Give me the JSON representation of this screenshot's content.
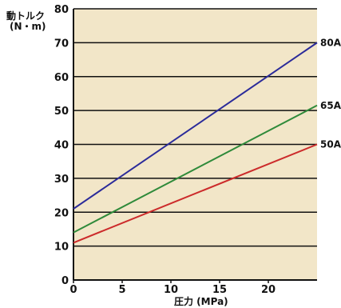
{
  "chart_data": {
    "type": "line",
    "title": "",
    "ylabel_line1": "動トルク",
    "ylabel_line2": "(N・m)",
    "xlabel": "圧力 (MPa)",
    "xlim": [
      0,
      25
    ],
    "ylim": [
      0,
      80
    ],
    "x_ticks": [
      0,
      5,
      10,
      15,
      20
    ],
    "y_ticks": [
      0,
      10,
      20,
      30,
      40,
      50,
      60,
      70,
      80
    ],
    "grid": "horizontal",
    "plot_background": "#f2e6c8",
    "series": [
      {
        "name": "80A",
        "color": "#2b2b9a",
        "x": [
          0,
          25
        ],
        "y": [
          21,
          70
        ]
      },
      {
        "name": "65A",
        "color": "#2f8a3a",
        "x": [
          0,
          25
        ],
        "y": [
          14,
          51.5
        ]
      },
      {
        "name": "50A",
        "color": "#cc2b2b",
        "x": [
          0,
          25
        ],
        "y": [
          11,
          40
        ]
      }
    ]
  }
}
